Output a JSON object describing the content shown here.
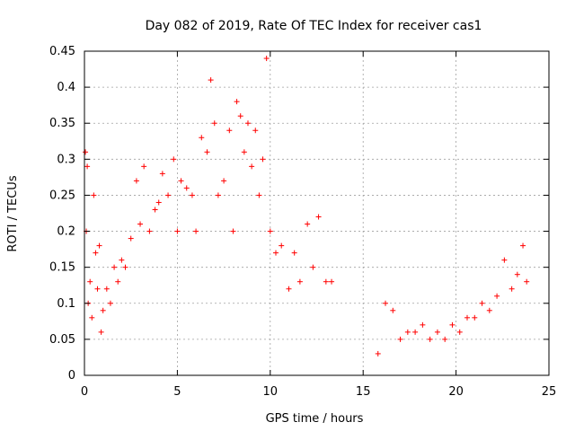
{
  "chart_data": {
    "type": "scatter",
    "title": "Day 082 of 2019, Rate Of TEC Index for receiver cas1",
    "xlabel": "GPS time / hours",
    "ylabel": "ROTI / TECUs",
    "xlim": [
      0,
      25
    ],
    "ylim": [
      0,
      0.45
    ],
    "xticks": [
      "0",
      "5",
      "10",
      "15",
      "20",
      "25"
    ],
    "yticks": [
      "0",
      "0.05",
      "0.1",
      "0.15",
      "0.2",
      "0.25",
      "0.3",
      "0.35",
      "0.4",
      "0.45"
    ],
    "grid": true,
    "marker": "+",
    "color": "#ff0000",
    "data_gap_hours": [
      13.4,
      15.7
    ],
    "series": [
      {
        "x": [
          0.05,
          0.1,
          0.15,
          0.2,
          0.3,
          0.4,
          0.5,
          0.6,
          0.7,
          0.8,
          0.9,
          1.0,
          1.2,
          1.4,
          1.6,
          1.8,
          2.0,
          2.2,
          2.5,
          2.8,
          3.0,
          3.2,
          3.5,
          3.8,
          4.0,
          4.2,
          4.5,
          4.8,
          5.0,
          5.2,
          5.5,
          5.8,
          6.0,
          6.3,
          6.6,
          6.8,
          7.0,
          7.2,
          7.5,
          7.8,
          8.0,
          8.2,
          8.4,
          8.6,
          8.8,
          9.0,
          9.2,
          9.4,
          9.6,
          9.8,
          10.0,
          10.3,
          10.6,
          11.0,
          11.3,
          11.6,
          12.0,
          12.3,
          12.6,
          13.0,
          13.3,
          15.8,
          16.2,
          16.6,
          17.0,
          17.4,
          17.8,
          18.2,
          18.6,
          19.0,
          19.4,
          19.8,
          20.2,
          20.6,
          21.0,
          21.4,
          21.8,
          22.2,
          22.6,
          23.0,
          23.3,
          23.6,
          23.8
        ],
        "y": [
          0.31,
          0.2,
          0.29,
          0.1,
          0.13,
          0.08,
          0.25,
          0.17,
          0.12,
          0.18,
          0.06,
          0.09,
          0.12,
          0.1,
          0.15,
          0.13,
          0.16,
          0.15,
          0.19,
          0.27,
          0.21,
          0.29,
          0.2,
          0.23,
          0.24,
          0.28,
          0.25,
          0.3,
          0.2,
          0.27,
          0.26,
          0.25,
          0.2,
          0.33,
          0.31,
          0.41,
          0.35,
          0.25,
          0.27,
          0.34,
          0.2,
          0.38,
          0.36,
          0.31,
          0.35,
          0.29,
          0.34,
          0.25,
          0.3,
          0.44,
          0.2,
          0.17,
          0.18,
          0.12,
          0.17,
          0.13,
          0.21,
          0.15,
          0.22,
          0.13,
          0.13,
          0.03,
          0.1,
          0.09,
          0.05,
          0.06,
          0.06,
          0.07,
          0.05,
          0.06,
          0.05,
          0.07,
          0.06,
          0.08,
          0.08,
          0.1,
          0.09,
          0.11,
          0.16,
          0.12,
          0.14,
          0.18,
          0.13
        ]
      }
    ]
  }
}
